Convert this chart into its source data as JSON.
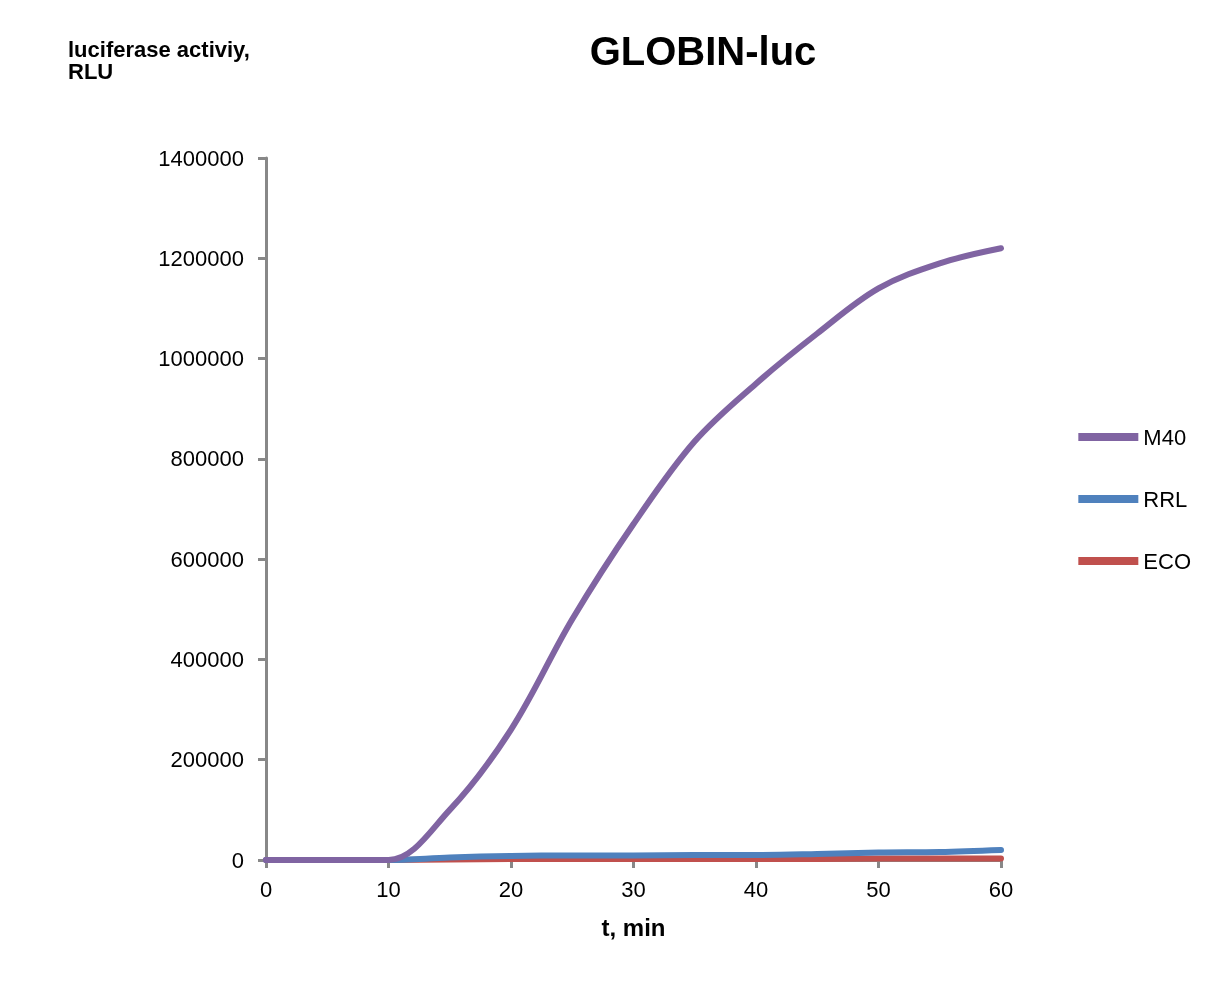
{
  "chart_data": {
    "type": "line",
    "title": "GLOBIN-luc",
    "ylabel": "luciferase activiy,\nRLU",
    "xlabel": "t, min",
    "x": [
      0,
      5,
      10,
      15,
      20,
      25,
      30,
      35,
      40,
      45,
      50,
      55,
      60
    ],
    "series": [
      {
        "name": "M40",
        "color": "#8064a2",
        "values": [
          0,
          0,
          0,
          100000,
          260000,
          480000,
          670000,
          835000,
          950000,
          1050000,
          1140000,
          1190000,
          1220000
        ]
      },
      {
        "name": "RRL",
        "color": "#4f81bd",
        "values": [
          0,
          0,
          0,
          5000,
          8000,
          9000,
          9000,
          10000,
          10000,
          12000,
          15000,
          16000,
          20000
        ]
      },
      {
        "name": "ECO",
        "color": "#c0504d",
        "values": [
          0,
          0,
          0,
          1000,
          2000,
          2000,
          2000,
          2000,
          2000,
          2000,
          3000,
          3000,
          3000
        ]
      }
    ],
    "xlim": [
      0,
      60
    ],
    "xticks": [
      0,
      10,
      20,
      30,
      40,
      50,
      60
    ],
    "ylim": [
      0,
      1400000
    ],
    "yticks": [
      0,
      200000,
      400000,
      600000,
      800000,
      1000000,
      1200000,
      1400000
    ],
    "grid": false,
    "legend": "right",
    "marker": "none",
    "line_style": "solid"
  }
}
